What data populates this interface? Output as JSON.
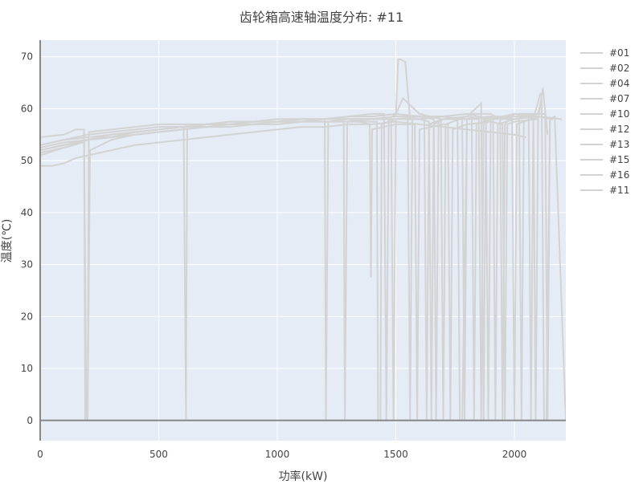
{
  "chart_data": {
    "type": "line",
    "title": "齿轮箱高速轴温度分布: #11",
    "xlabel": "功率(kW)",
    "ylabel": "温度(℃)",
    "xlim": [
      0,
      2217
    ],
    "ylim": [
      -3.9,
      73.2
    ],
    "x_ticks": [
      "0",
      "500",
      "1000",
      "1500",
      "2000"
    ],
    "x_tick_values": [
      0,
      500,
      1000,
      1500,
      2000
    ],
    "y_ticks": [
      "0",
      "10",
      "20",
      "30",
      "40",
      "50",
      "60",
      "70"
    ],
    "y_tick_values": [
      0,
      10,
      20,
      30,
      40,
      50,
      60,
      70
    ],
    "grid": true,
    "legend_position": "right",
    "line_color": "#d3d3d3",
    "background": "#e5ecf6",
    "series": [
      {
        "name": "#01",
        "x": [
          0,
          50,
          100,
          150,
          200,
          300,
          400,
          500,
          600,
          700,
          800,
          900,
          1000,
          1100,
          1200,
          1300,
          1400,
          1500,
          1600,
          1700,
          1800,
          1900,
          2000,
          2050
        ],
        "y": [
          49,
          49,
          49.5,
          50.5,
          51,
          52,
          53,
          53.5,
          54,
          54.5,
          55,
          55.5,
          56,
          56.5,
          56.5,
          57,
          57,
          57.5,
          57,
          56.5,
          56,
          55.5,
          55,
          54.5
        ]
      },
      {
        "name": "#02",
        "x": [
          0,
          100,
          150,
          185,
          190,
          200,
          205,
          300,
          400,
          500,
          600,
          700,
          800,
          900,
          1000,
          1100,
          1200,
          1300,
          1400,
          1450,
          1460,
          1470,
          1500,
          1600,
          1700,
          1800,
          1900,
          2000,
          2100
        ],
        "y": [
          54.5,
          55,
          56,
          56,
          0,
          0,
          55.5,
          56,
          56.5,
          57,
          57,
          57,
          57.5,
          57.5,
          58,
          58,
          58,
          58.5,
          59,
          59,
          0,
          58,
          59,
          58.5,
          58.5,
          59,
          58,
          59,
          58.5
        ]
      },
      {
        "name": "#04",
        "x": [
          0,
          100,
          200,
          300,
          400,
          500,
          600,
          605,
          615,
          620,
          700,
          800,
          900,
          1000,
          1100,
          1200,
          1205,
          1215,
          1300,
          1400,
          1500,
          1550,
          1560,
          1570,
          1600,
          1700,
          1780,
          1790,
          1800,
          1900,
          2000,
          2080,
          2090,
          2100
        ],
        "y": [
          52,
          53,
          54,
          55,
          55.5,
          56,
          56.5,
          56.5,
          0,
          56,
          57,
          57,
          57.5,
          57.5,
          58,
          58,
          0,
          57.5,
          58,
          58,
          58.5,
          58.5,
          0,
          58,
          58,
          58.5,
          58,
          0,
          58,
          58.5,
          58.5,
          59,
          0,
          58
        ]
      },
      {
        "name": "#07",
        "x": [
          0,
          100,
          200,
          300,
          400,
          500,
          600,
          700,
          800,
          900,
          1000,
          1100,
          1200,
          1280,
          1285,
          1295,
          1300,
          1400,
          1500,
          1600,
          1620,
          1630,
          1640,
          1700,
          1800,
          1850,
          1860,
          1870,
          1900,
          2000,
          2100,
          2130,
          2140,
          2150
        ],
        "y": [
          51,
          52.5,
          54,
          54.5,
          55,
          55.5,
          56,
          56.5,
          57,
          57,
          57,
          57.5,
          57.5,
          57.5,
          0,
          57,
          57.5,
          58,
          58,
          58,
          58,
          0,
          57,
          58,
          58,
          58,
          0,
          58,
          58.5,
          58,
          59,
          59,
          0,
          58
        ]
      },
      {
        "name": "#10",
        "x": [
          0,
          100,
          200,
          300,
          400,
          500,
          600,
          700,
          800,
          900,
          1000,
          1100,
          1200,
          1300,
          1390,
          1395,
          1400,
          1500,
          1580,
          1590,
          1600,
          1700,
          1720,
          1730,
          1740,
          1800,
          1900,
          1950,
          1960,
          1970,
          2000,
          2100,
          2120,
          2140
        ],
        "y": [
          53,
          54,
          54.5,
          55,
          55.5,
          56,
          56.5,
          57,
          57,
          57.5,
          57.5,
          58,
          58,
          58,
          57,
          27.5,
          56,
          57,
          57,
          0,
          56,
          57,
          57,
          0,
          56,
          57,
          57.5,
          57,
          0,
          57,
          57.5,
          58,
          64,
          55
        ]
      },
      {
        "name": "#12",
        "x": [
          0,
          100,
          200,
          300,
          400,
          500,
          600,
          700,
          800,
          900,
          1000,
          1100,
          1200,
          1300,
          1400,
          1420,
          1425,
          1435,
          1440,
          1500,
          1600,
          1640,
          1650,
          1660,
          1700,
          1800,
          1820,
          1830,
          1840,
          1900,
          2000,
          2020,
          2030,
          2040,
          2100
        ],
        "y": [
          52,
          53,
          54,
          54.5,
          55,
          55.5,
          56,
          56.5,
          56.5,
          57,
          57,
          57.5,
          57.5,
          57.5,
          57.5,
          57.5,
          0,
          0,
          57,
          58,
          58,
          57.5,
          0,
          57,
          58,
          58,
          58,
          0,
          57,
          58,
          58,
          58,
          0,
          57.5,
          58.5
        ]
      },
      {
        "name": "#13",
        "x": [
          0,
          100,
          200,
          300,
          400,
          500,
          600,
          700,
          800,
          900,
          1000,
          1100,
          1200,
          1300,
          1400,
          1480,
          1490,
          1500,
          1600,
          1660,
          1670,
          1680,
          1700,
          1800,
          1880,
          1890,
          1900,
          2000,
          2060,
          2070,
          2080,
          2110
        ],
        "y": [
          52.5,
          53.5,
          54,
          54.5,
          55.5,
          56,
          56.5,
          56.5,
          57,
          57,
          57.5,
          57.5,
          58,
          58,
          58,
          58,
          0,
          58,
          58.5,
          58,
          0,
          57.5,
          58,
          58.5,
          58,
          0,
          58,
          58.5,
          58.5,
          0,
          58,
          63
        ]
      },
      {
        "name": "#15",
        "x": [
          0,
          100,
          180,
          185,
          195,
          200,
          210,
          300,
          400,
          500,
          600,
          700,
          800,
          900,
          1000,
          1100,
          1200,
          1300,
          1400,
          1500,
          1510,
          1520,
          1540,
          1560,
          1600,
          1700,
          1760,
          1770,
          1780,
          1800,
          1900,
          1910,
          1920,
          1930,
          2000,
          2100,
          2200
        ],
        "y": [
          51.5,
          52.5,
          53.5,
          53.5,
          0,
          0,
          52,
          54,
          55,
          55.5,
          56,
          56.5,
          57,
          57,
          57.5,
          57.5,
          58,
          58,
          58,
          58.5,
          69.5,
          69.5,
          69,
          58,
          58,
          58.5,
          58,
          0,
          0,
          58,
          58.5,
          58,
          0,
          57,
          58,
          58.5,
          58
        ]
      },
      {
        "name": "#16",
        "x": [
          0,
          100,
          200,
          300,
          400,
          500,
          600,
          700,
          800,
          900,
          1000,
          1100,
          1200,
          1300,
          1400,
          1500,
          1530,
          1600,
          1690,
          1700,
          1710,
          1800,
          1860,
          1870,
          1880,
          1900,
          1990,
          2000,
          2010,
          2100,
          2160,
          2170
        ],
        "y": [
          53,
          54,
          55,
          55.5,
          56,
          56.5,
          56.5,
          57,
          57.5,
          57.5,
          58,
          58,
          58,
          58.5,
          58.5,
          59,
          62,
          59,
          58,
          0,
          57,
          58.5,
          61,
          0,
          57,
          58.5,
          58,
          0,
          57,
          58.5,
          58,
          58.5
        ]
      },
      {
        "name": "#11",
        "x": [
          0,
          100,
          200,
          300,
          400,
          500,
          600,
          700,
          800,
          900,
          1000,
          1100,
          1200,
          1300,
          1400,
          1500,
          1600,
          1700,
          1800,
          1900,
          1940,
          1950,
          1960,
          2000,
          2100,
          2115,
          2125,
          2135,
          2150,
          2170,
          2217
        ],
        "y": [
          52,
          53,
          54,
          55,
          55.5,
          56,
          56.5,
          57,
          57,
          57.5,
          57.5,
          58,
          58,
          58.5,
          58.5,
          59,
          58.5,
          58.5,
          59,
          59,
          58,
          0,
          57,
          59,
          59,
          62,
          0,
          0,
          58,
          58.5,
          0
        ]
      }
    ]
  }
}
